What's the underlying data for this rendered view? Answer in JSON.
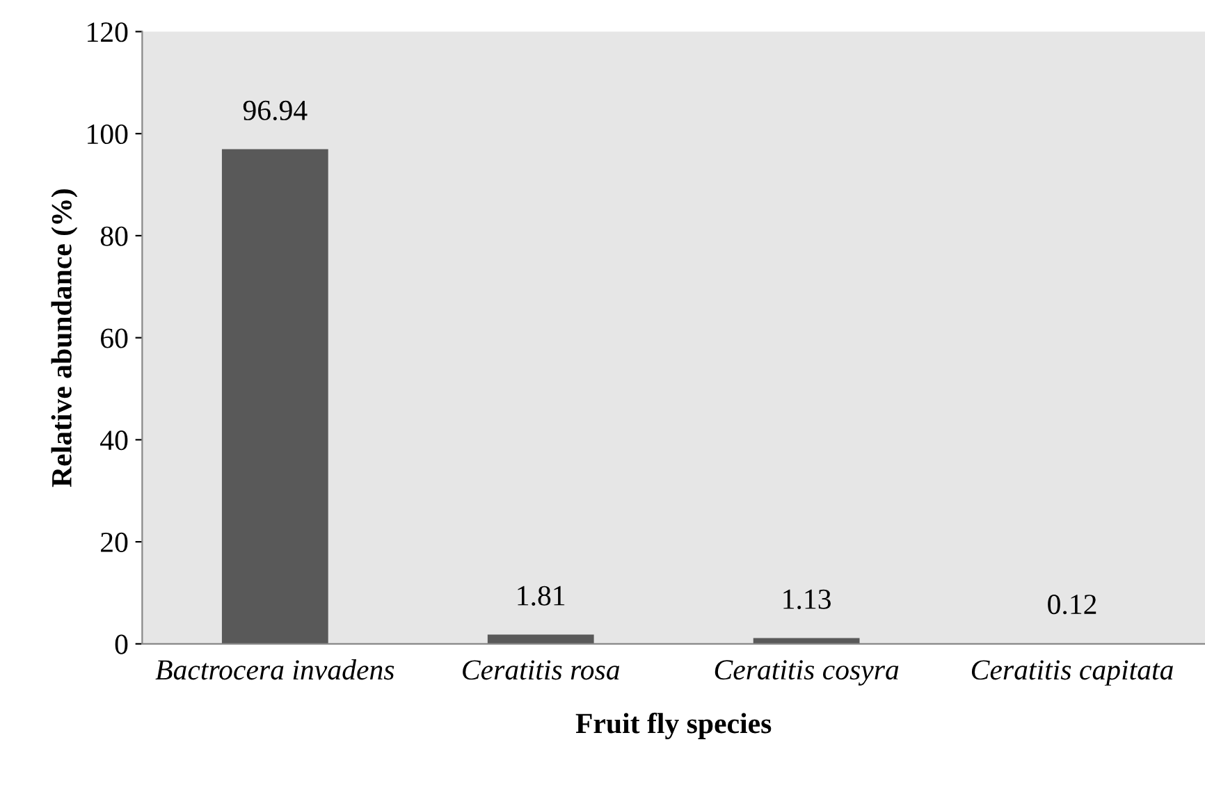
{
  "chart_data": {
    "type": "bar",
    "xlabel": "Fruit fly species",
    "ylabel": "Relative abundance (%)",
    "categories": [
      "Bactrocera invadens",
      "Ceratitis rosa",
      "Ceratitis cosyra",
      "Ceratitis capitata"
    ],
    "values": [
      96.94,
      1.81,
      1.13,
      0.12
    ],
    "color": "#595959",
    "ylim": [
      0,
      120
    ],
    "yticks": [
      0,
      20,
      40,
      60,
      80,
      100,
      120
    ],
    "grid": false,
    "legend": false,
    "data_labels": true
  }
}
